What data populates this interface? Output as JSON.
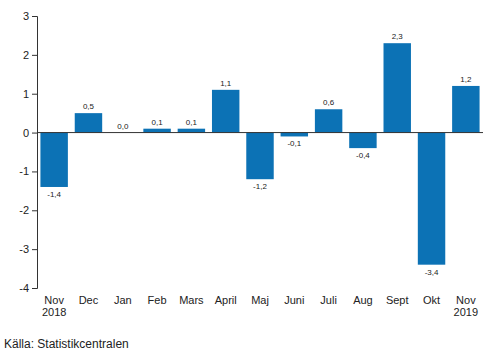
{
  "chart_data": {
    "type": "bar",
    "categories": [
      "Nov 2018",
      "Dec",
      "Jan",
      "Feb",
      "Mars",
      "April",
      "Maj",
      "Juni",
      "Juli",
      "Aug",
      "Sept",
      "Okt",
      "Nov 2019"
    ],
    "values": [
      -1.4,
      0.5,
      0.0,
      0.1,
      0.1,
      1.1,
      -1.2,
      -0.1,
      0.6,
      -0.4,
      2.3,
      -3.4,
      1.2
    ],
    "value_labels": [
      "-1,4",
      "0,5",
      "0,0",
      "0,1",
      "0,1",
      "1,1",
      "-1,2",
      "-0,1",
      "0,6",
      "-0,4",
      "2,3",
      "-3,4",
      "1,2"
    ],
    "color": "#0c72b5",
    "ylim": [
      -4,
      3
    ],
    "yticks": [
      -4,
      -3,
      -2,
      -1,
      0,
      1,
      2,
      3
    ],
    "grid": false,
    "data_labels": true,
    "source": "Källa: Statistikcentralen"
  }
}
